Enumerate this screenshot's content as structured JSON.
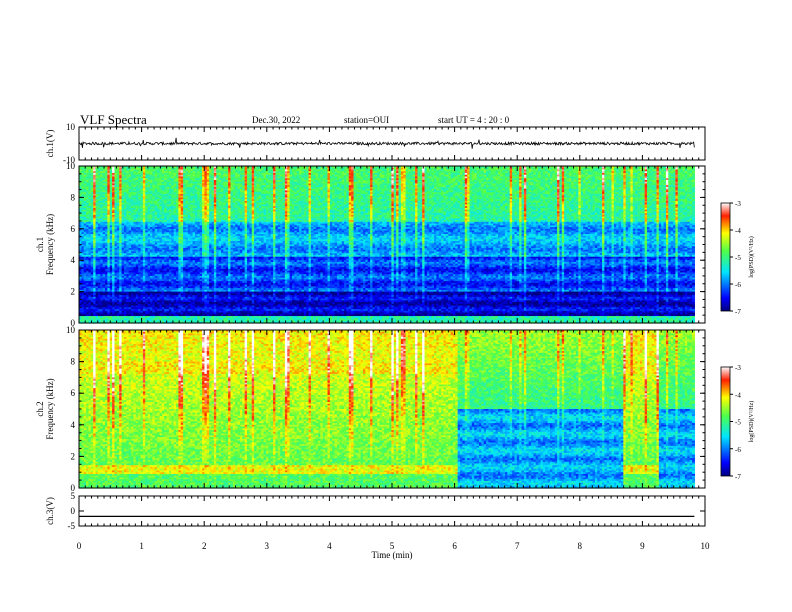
{
  "header": {
    "title": "VLF Spectra",
    "date": "Dec.30, 2022",
    "station": "station=OUI",
    "start": "start  UT =   4 : 20 : 0"
  },
  "chart_data": {
    "type": "heatmap",
    "xlabel": "Time  (min)",
    "xlim": [
      0,
      10
    ],
    "xticks": [
      "0",
      "1",
      "2",
      "3",
      "4",
      "5",
      "6",
      "7",
      "8",
      "9",
      "10"
    ],
    "panels": [
      {
        "id": "ch1-waveform",
        "type": "line",
        "ylabel": "ch.1(V)",
        "ylim": [
          -10,
          10
        ],
        "yticks": [
          "10",
          "-10"
        ],
        "baseline": 0,
        "data_end": 9.83
      },
      {
        "id": "ch1-spectrogram",
        "type": "heatmap",
        "ylabel_line1": "ch.1",
        "ylabel_line2": "Frequency  (kHz)",
        "ylim": [
          0,
          10
        ],
        "yticks": [
          "0",
          "2",
          "4",
          "6",
          "8",
          "10"
        ],
        "data_end": 9.83,
        "colorbar": {
          "label": "log(PSD)(V²/Hz)",
          "ticks": [
            "-3",
            "-4",
            "-5",
            "-6",
            "-7"
          ],
          "range": [
            -7,
            -3
          ]
        }
      },
      {
        "id": "ch2-spectrogram",
        "type": "heatmap",
        "ylabel_line1": "ch.2",
        "ylabel_line2": "Frequency  (kHz)",
        "ylim": [
          0,
          10
        ],
        "yticks": [
          "0",
          "2",
          "4",
          "6",
          "8",
          "10"
        ],
        "data_end": 9.83,
        "quiet_intervals": [
          [
            6.05,
            8.7
          ],
          [
            9.27,
            9.83
          ]
        ],
        "colorbar": {
          "label": "log(PSD)(V²/Hz)",
          "ticks": [
            "-3",
            "-4",
            "-5",
            "-6",
            "-7"
          ],
          "range": [
            -7,
            -3
          ]
        }
      },
      {
        "id": "ch3-waveform",
        "type": "line",
        "ylabel": "ch.3(V)",
        "ylim": [
          -5,
          5
        ],
        "yticks": [
          "5",
          "0",
          "-5"
        ],
        "baseline": -1.8,
        "data_end": 9.83
      }
    ]
  }
}
